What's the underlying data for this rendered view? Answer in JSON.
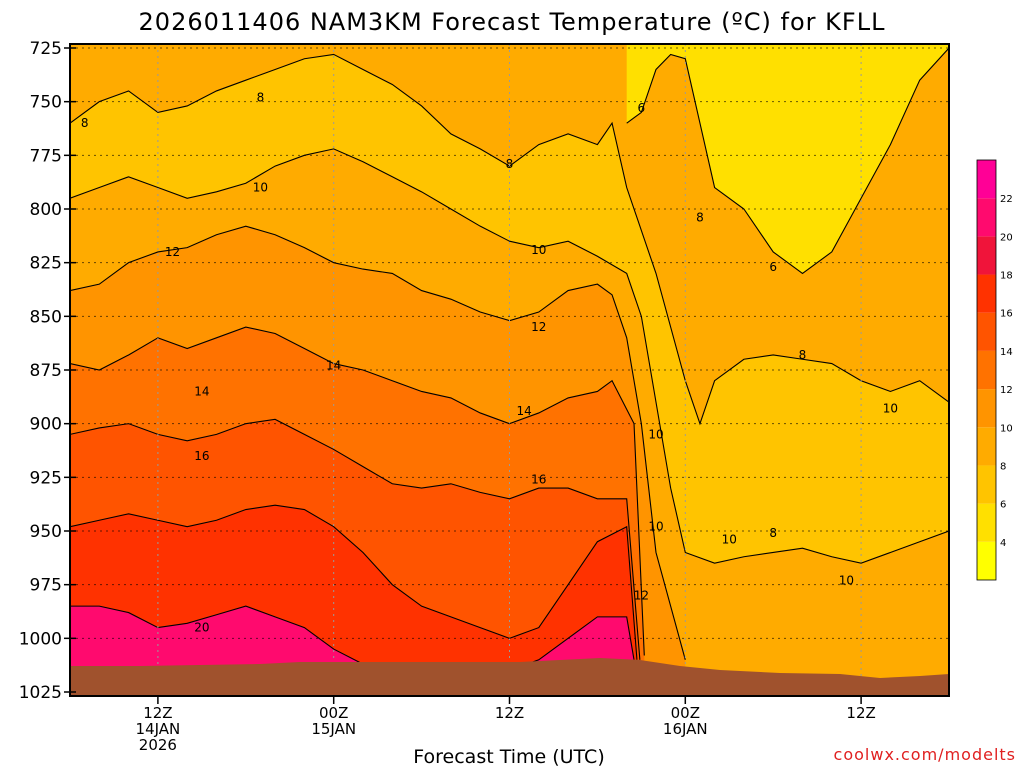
{
  "chart_data": {
    "type": "filled-contour time-height cross-section",
    "title": "2026011406 NAM3KM Forecast Temperature (ºC) for KFLL",
    "xlabel": "Forecast Time (UTC)",
    "ylabel": "",
    "credit": "coolwx.com/modelts",
    "y_ticks": [
      "725",
      "750",
      "775",
      "800",
      "825",
      "850",
      "875",
      "900",
      "925",
      "950",
      "975",
      "1000",
      "1025"
    ],
    "ylim": [
      1025,
      725
    ],
    "x_ticks": [
      {
        "hour": 6,
        "l1": "12Z",
        "l2": "14JAN",
        "l3": "2026"
      },
      {
        "hour": 18,
        "l1": "00Z",
        "l2": "15JAN",
        "l3": ""
      },
      {
        "hour": 30,
        "l1": "12Z",
        "l2": "",
        "l3": ""
      },
      {
        "hour": 42,
        "l1": "00Z",
        "l2": "16JAN",
        "l3": ""
      },
      {
        "hour": 54,
        "l1": "12Z",
        "l2": "",
        "l3": ""
      }
    ],
    "xlim_hours": [
      0,
      60
    ],
    "colorbar": {
      "levels": [
        4,
        6,
        8,
        10,
        12,
        14,
        16,
        18,
        20,
        22
      ],
      "colors": [
        "#ffff00",
        "#ffe000",
        "#ffc400",
        "#ffab00",
        "#ff9400",
        "#ff7200",
        "#ff5400",
        "#ff3200",
        "#f0143a",
        "#ff0a6e",
        "#ff0096"
      ]
    },
    "contour_labels": [
      {
        "value": "8",
        "hour": 1.0,
        "p": 760
      },
      {
        "value": "8",
        "hour": 13.0,
        "p": 748
      },
      {
        "value": "10",
        "hour": 13.0,
        "p": 790
      },
      {
        "value": "12",
        "hour": 7.0,
        "p": 820
      },
      {
        "value": "14",
        "hour": 9.0,
        "p": 885
      },
      {
        "value": "16",
        "hour": 9.0,
        "p": 915
      },
      {
        "value": "20",
        "hour": 9.0,
        "p": 995
      },
      {
        "value": "14",
        "hour": 18.0,
        "p": 873
      },
      {
        "value": "14",
        "hour": 31.0,
        "p": 894
      },
      {
        "value": "16",
        "hour": 32.0,
        "p": 926
      },
      {
        "value": "12",
        "hour": 32.0,
        "p": 855
      },
      {
        "value": "10",
        "hour": 32.0,
        "p": 819
      },
      {
        "value": "8",
        "hour": 30.0,
        "p": 779
      },
      {
        "value": "6",
        "hour": 39.0,
        "p": 753
      },
      {
        "value": "8",
        "hour": 43.0,
        "p": 804
      },
      {
        "value": "6",
        "hour": 48.0,
        "p": 827
      },
      {
        "value": "8",
        "hour": 50.0,
        "p": 868
      },
      {
        "value": "10",
        "hour": 56.0,
        "p": 893
      },
      {
        "value": "10",
        "hour": 40.0,
        "p": 905
      },
      {
        "value": "10",
        "hour": 40.0,
        "p": 948
      },
      {
        "value": "10",
        "hour": 45.0,
        "p": 954
      },
      {
        "value": "8",
        "hour": 48.0,
        "p": 951
      },
      {
        "value": "10",
        "hour": 53.0,
        "p": 973
      },
      {
        "value": "12",
        "hour": 39.0,
        "p": 980
      }
    ],
    "series": [
      {
        "name": "20C isotherm",
        "x": [
          0,
          2,
          4,
          6,
          8,
          10,
          12,
          14,
          16,
          18,
          20,
          22,
          24,
          26,
          28,
          30,
          32,
          34,
          36,
          38,
          38.5
        ],
        "y": [
          985,
          985,
          988,
          995,
          993,
          989,
          985,
          990,
          995,
          1005,
          1012,
          1015,
          1015,
          1015,
          1015,
          1015,
          1010,
          1000,
          990,
          990,
          1010
        ]
      },
      {
        "name": "18C isotherm",
        "x": [
          0,
          2,
          4,
          6,
          8,
          10,
          12,
          14,
          16,
          18,
          20,
          22,
          24,
          26,
          28,
          30,
          32,
          34,
          36,
          38,
          38.7
        ],
        "y": [
          948,
          945,
          942,
          945,
          948,
          945,
          940,
          938,
          940,
          948,
          960,
          975,
          985,
          990,
          995,
          1000,
          995,
          975,
          955,
          948,
          1010
        ]
      },
      {
        "name": "16C isotherm",
        "x": [
          0,
          2,
          4,
          6,
          8,
          10,
          12,
          14,
          16,
          18,
          20,
          22,
          24,
          26,
          28,
          30,
          32,
          34,
          36,
          38,
          38.9
        ],
        "y": [
          905,
          902,
          900,
          905,
          908,
          905,
          900,
          898,
          905,
          912,
          920,
          928,
          930,
          928,
          932,
          935,
          930,
          930,
          935,
          935,
          1010
        ]
      },
      {
        "name": "14C isotherm",
        "x": [
          0,
          2,
          4,
          6,
          8,
          10,
          12,
          14,
          16,
          18,
          20,
          22,
          24,
          26,
          28,
          30,
          32,
          34,
          36,
          37,
          38.5,
          39.2
        ],
        "y": [
          872,
          875,
          868,
          860,
          865,
          860,
          855,
          858,
          865,
          872,
          875,
          880,
          885,
          888,
          895,
          900,
          895,
          888,
          885,
          880,
          900,
          1008
        ]
      },
      {
        "name": "12C isotherm",
        "x": [
          0,
          2,
          4,
          6,
          8,
          10,
          12,
          14,
          16,
          18,
          20,
          22,
          24,
          26,
          28,
          30,
          32,
          34,
          36,
          37,
          38,
          39,
          40,
          42
        ],
        "y": [
          838,
          835,
          825,
          820,
          818,
          812,
          808,
          812,
          818,
          825,
          828,
          830,
          838,
          842,
          848,
          852,
          848,
          838,
          835,
          840,
          860,
          900,
          960,
          1010
        ]
      },
      {
        "name": "10C isotherm",
        "x": [
          0,
          2,
          4,
          6,
          8,
          10,
          12,
          14,
          16,
          18,
          20,
          22,
          24,
          26,
          28,
          30,
          32,
          34,
          36,
          38,
          39,
          40,
          41,
          42,
          44,
          46,
          48,
          50,
          52,
          54,
          56,
          58,
          60
        ],
        "y": [
          795,
          790,
          785,
          790,
          795,
          792,
          788,
          780,
          775,
          772,
          778,
          785,
          792,
          800,
          808,
          815,
          818,
          815,
          822,
          830,
          850,
          890,
          930,
          960,
          965,
          962,
          960,
          958,
          962,
          965,
          960,
          955,
          950
        ]
      },
      {
        "name": "8C isotherm",
        "x": [
          0,
          2,
          4,
          6,
          8,
          10,
          12,
          14,
          16,
          18,
          20,
          22,
          24,
          26,
          28,
          30,
          32,
          34,
          36,
          37,
          38,
          40,
          42,
          43,
          44,
          46,
          48,
          50,
          52,
          54,
          56,
          58,
          60
        ],
        "y": [
          760,
          750,
          745,
          755,
          752,
          745,
          740,
          735,
          730,
          728,
          735,
          742,
          752,
          765,
          772,
          780,
          770,
          765,
          770,
          760,
          790,
          830,
          880,
          900,
          880,
          870,
          868,
          870,
          872,
          880,
          885,
          880,
          890
        ]
      },
      {
        "name": "6C isotherm",
        "x": [
          38,
          39,
          40,
          41,
          42,
          43,
          44,
          46,
          48,
          50,
          52,
          54,
          56,
          58,
          60
        ],
        "y": [
          760,
          755,
          735,
          728,
          730,
          760,
          790,
          800,
          820,
          830,
          820,
          795,
          770,
          740,
          725
        ]
      }
    ]
  }
}
